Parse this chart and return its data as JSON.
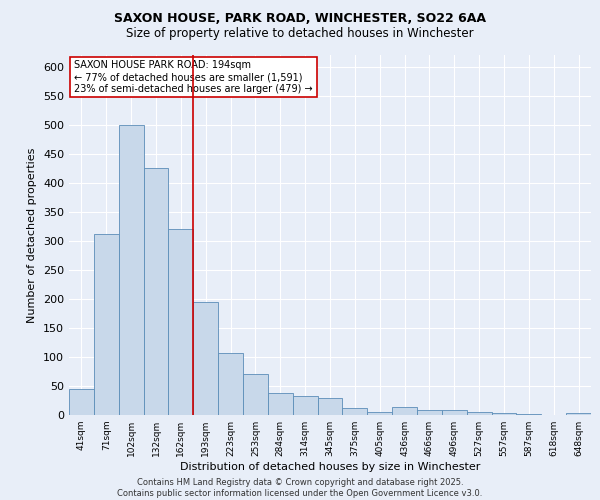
{
  "title_line1": "SAXON HOUSE, PARK ROAD, WINCHESTER, SO22 6AA",
  "title_line2": "Size of property relative to detached houses in Winchester",
  "xlabel": "Distribution of detached houses by size in Winchester",
  "ylabel": "Number of detached properties",
  "categories": [
    "41sqm",
    "71sqm",
    "102sqm",
    "132sqm",
    "162sqm",
    "193sqm",
    "223sqm",
    "253sqm",
    "284sqm",
    "314sqm",
    "345sqm",
    "375sqm",
    "405sqm",
    "436sqm",
    "466sqm",
    "496sqm",
    "527sqm",
    "557sqm",
    "587sqm",
    "618sqm",
    "648sqm"
  ],
  "values": [
    45,
    312,
    500,
    425,
    320,
    195,
    106,
    70,
    38,
    33,
    30,
    12,
    5,
    13,
    9,
    8,
    5,
    3,
    1,
    0,
    4
  ],
  "bar_color": "#c8d8ea",
  "bar_edge_color": "#5b8db8",
  "background_color": "#e8eef8",
  "grid_color": "#ffffff",
  "vline_x_index": 5,
  "vline_color": "#cc0000",
  "annotation_title": "SAXON HOUSE PARK ROAD: 194sqm",
  "annotation_line1": "← 77% of detached houses are smaller (1,591)",
  "annotation_line2": "23% of semi-detached houses are larger (479) →",
  "annotation_box_color": "#ffffff",
  "annotation_box_edge": "#cc0000",
  "ylim": [
    0,
    620
  ],
  "yticks": [
    0,
    50,
    100,
    150,
    200,
    250,
    300,
    350,
    400,
    450,
    500,
    550,
    600
  ],
  "footnote_line1": "Contains HM Land Registry data © Crown copyright and database right 2025.",
  "footnote_line2": "Contains public sector information licensed under the Open Government Licence v3.0."
}
